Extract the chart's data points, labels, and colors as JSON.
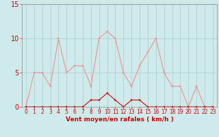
{
  "x": [
    0,
    1,
    2,
    3,
    4,
    5,
    6,
    7,
    8,
    9,
    10,
    11,
    12,
    13,
    14,
    15,
    16,
    17,
    18,
    19,
    20,
    21,
    22,
    23
  ],
  "rafales": [
    0,
    5,
    5,
    3,
    10,
    5,
    6,
    6,
    3,
    10,
    11,
    10,
    5,
    3,
    6,
    8,
    10,
    5,
    3,
    3,
    0,
    3,
    0,
    0
  ],
  "moyen": [
    0,
    0,
    0,
    0,
    0,
    0,
    0,
    0,
    1,
    1,
    2,
    1,
    0,
    1,
    1,
    0,
    0,
    0,
    0,
    0,
    0,
    0,
    0,
    0
  ],
  "bg_color": "#ceeaea",
  "grid_color": "#aacccc",
  "line_color_rafales": "#f09090",
  "line_color_moyen": "#cc0000",
  "xlabel": "Vent moyen/en rafales ( km/h )",
  "xlabel_color": "#cc0000",
  "yticks": [
    0,
    5,
    10,
    15
  ],
  "xticks": [
    0,
    1,
    2,
    3,
    4,
    5,
    6,
    7,
    8,
    9,
    10,
    11,
    12,
    13,
    14,
    15,
    16,
    17,
    18,
    19,
    20,
    21,
    22,
    23
  ],
  "ylim": [
    0,
    15
  ],
  "xlim": [
    -0.5,
    23.5
  ],
  "tick_color": "#cc0000",
  "tick_fontsize": 5.5,
  "ylabel_fontsize": 7,
  "xlabel_fontsize": 6.5,
  "spine_color": "#888888",
  "linewidth": 0.8,
  "markersize": 2.0
}
